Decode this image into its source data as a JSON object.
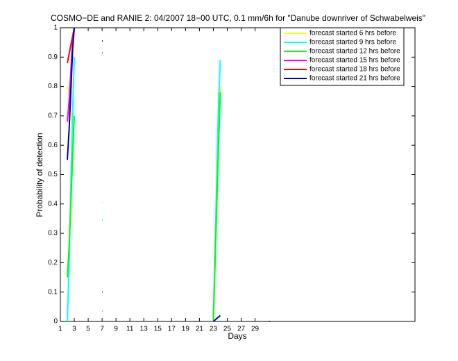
{
  "chart_data": {
    "type": "line",
    "title": "COSMO−DE and RANIE 2: 04/2007 18−00 UTC, 0.1 mm/6h for \"Danube downriver of Schwabelweis\"",
    "x_label": "Days",
    "y_label": "Probability of detection",
    "x": [
      2,
      2.25,
      2.5,
      2.75,
      3,
      5,
      7,
      15,
      23,
      23.25,
      23.5,
      23.75,
      24,
      28,
      31
    ],
    "series": [
      {
        "name": "forecast started 6 hrs before",
        "color": "#ffff00",
        "values": [
          0.8,
          0.78,
          0.72,
          0.66,
          0.63,
          null,
          0.405,
          null,
          0,
          0.2,
          0.45,
          0.65,
          0.8,
          null,
          null
        ]
      },
      {
        "name": "forecast started 9 hrs before",
        "color": "#00ffff",
        "values": [
          0.0,
          0.18,
          0.45,
          0.7,
          0.9,
          null,
          0.345,
          null,
          0.01,
          0.25,
          0.5,
          0.75,
          0.89,
          null,
          null
        ]
      },
      {
        "name": "forecast started 12 hrs before",
        "color": "#00ff00",
        "values": [
          0.15,
          0.25,
          0.4,
          0.55,
          0.7,
          null,
          0.035,
          null,
          0,
          0.2,
          0.4,
          0.6,
          0.78,
          null,
          null
        ]
      },
      {
        "name": "forecast started 15 hrs before",
        "color": "#ff00ff",
        "values": [
          0.68,
          0.75,
          0.85,
          0.95,
          1.0,
          null,
          0.915,
          null,
          null,
          null,
          null,
          null,
          null,
          null,
          null
        ]
      },
      {
        "name": "forecast started 18 hrs before",
        "color": "#ff0000",
        "values": [
          0.88,
          0.91,
          0.94,
          0.97,
          1.0,
          null,
          0.1,
          null,
          null,
          null,
          null,
          null,
          null,
          null,
          null
        ]
      },
      {
        "name": "forecast started 21 hrs before",
        "color": "#0000b0",
        "values": [
          0.55,
          0.65,
          0.78,
          0.92,
          1.0,
          null,
          0.955,
          null,
          0,
          0.005,
          0.01,
          0.015,
          0.02,
          null,
          0
        ]
      }
    ],
    "xlim": [
      1,
      52
    ],
    "ylim": [
      0,
      1
    ],
    "xticks": [
      1,
      3,
      5,
      7,
      9,
      11,
      13,
      15,
      17,
      19,
      21,
      23,
      25,
      27,
      29
    ],
    "yticks": [
      0,
      0.1,
      0.2,
      0.3,
      0.4,
      0.5,
      0.6,
      0.7,
      0.8,
      0.9,
      1
    ],
    "legend": "upper right"
  }
}
